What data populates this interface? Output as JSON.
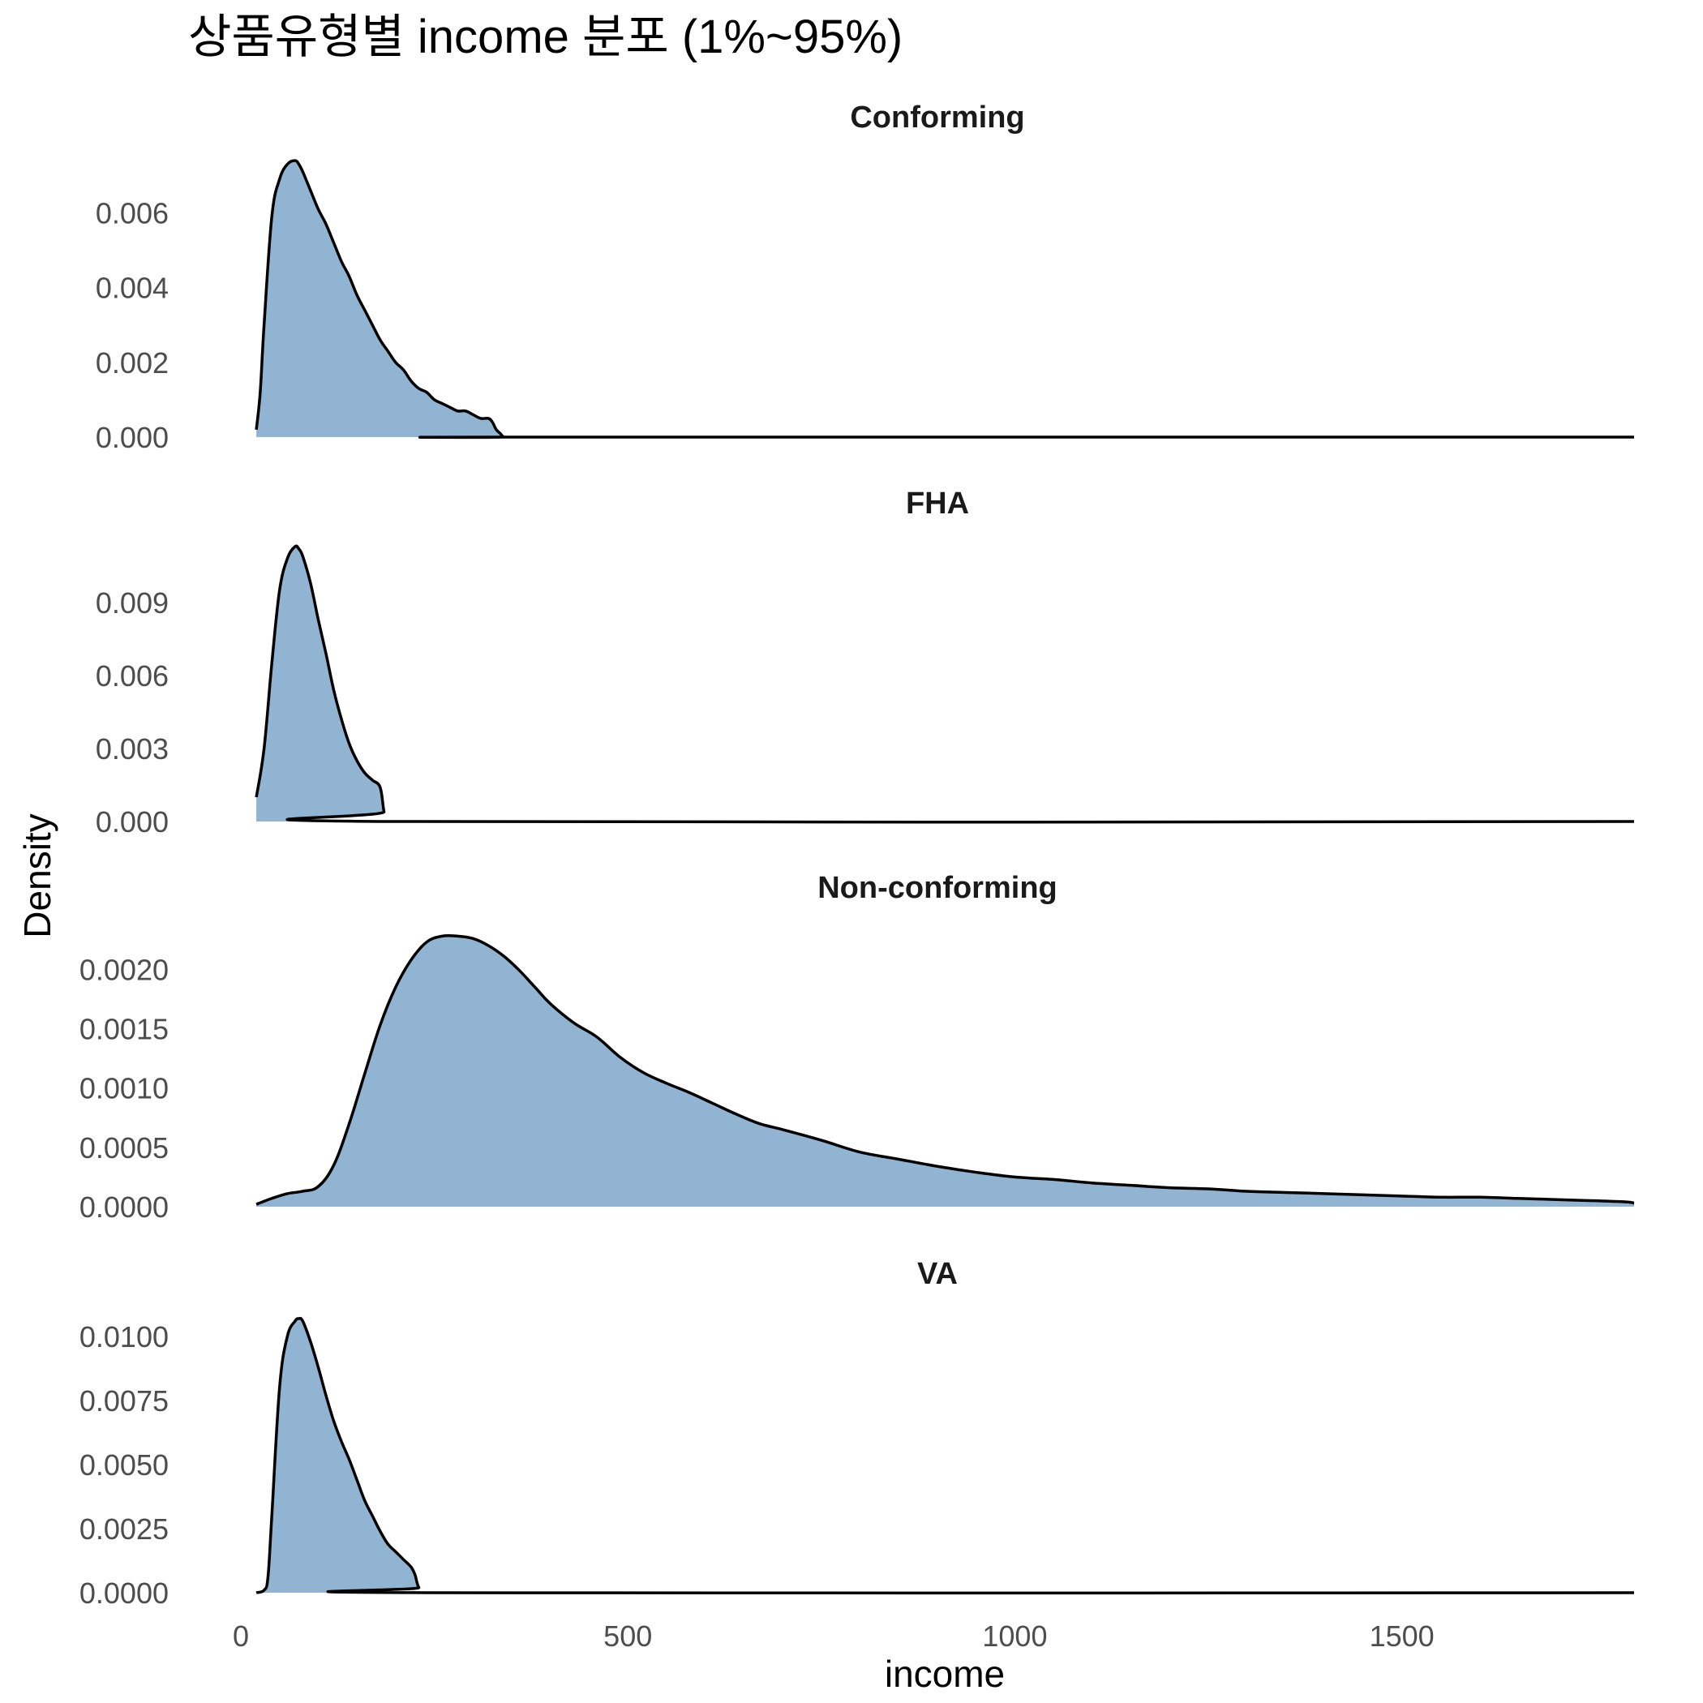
{
  "colors": {
    "fill": "#92b4d3",
    "line": "#000000",
    "text": "#1a1a1a",
    "tick": "#4d4d4d"
  },
  "chart_data": {
    "type": "area",
    "title": "상품유형별 income 분포 (1%~95%)",
    "xlabel": "income",
    "ylabel": "Density",
    "xlim": [
      0,
      1800
    ],
    "x_ticks": [
      0,
      500,
      1000,
      1500
    ],
    "grid": false,
    "legend": "none",
    "facets": [
      {
        "name": "Conforming",
        "ylim": [
          0,
          0.0074
        ],
        "y_ticks": [
          "0.000",
          "0.002",
          "0.004",
          "0.006"
        ],
        "y_tick_values": [
          0,
          0.002,
          0.004,
          0.006
        ],
        "x": [
          20,
          25,
          30,
          40,
          50,
          60,
          70,
          75,
          80,
          90,
          100,
          110,
          120,
          130,
          140,
          150,
          160,
          170,
          180,
          190,
          200,
          210,
          220,
          230,
          240,
          250,
          260,
          270,
          280,
          290,
          300,
          310,
          320,
          325,
          330,
          335,
          340,
          350,
          1800
        ],
        "y": [
          0.0002,
          0.0012,
          0.003,
          0.0059,
          0.0069,
          0.0073,
          0.0074,
          0.0073,
          0.0071,
          0.0066,
          0.0061,
          0.0057,
          0.0052,
          0.0047,
          0.0043,
          0.0038,
          0.0034,
          0.003,
          0.0026,
          0.0023,
          0.002,
          0.0018,
          0.0015,
          0.0013,
          0.0012,
          0.001,
          0.0009,
          0.0008,
          0.0007,
          0.0007,
          0.0006,
          0.0005,
          0.0005,
          0.0004,
          0.0002,
          0.0001,
          0.0,
          0.0,
          0.0
        ]
      },
      {
        "name": "FHA",
        "ylim": [
          0,
          0.0113
        ],
        "y_ticks": [
          "0.000",
          "0.003",
          "0.006",
          "0.009"
        ],
        "y_tick_values": [
          0,
          0.003,
          0.006,
          0.009
        ],
        "x": [
          20,
          30,
          40,
          50,
          60,
          70,
          75,
          80,
          90,
          100,
          110,
          120,
          130,
          140,
          150,
          160,
          170,
          180,
          185,
          190,
          1800
        ],
        "y": [
          0.001,
          0.003,
          0.0065,
          0.0095,
          0.0108,
          0.0113,
          0.0112,
          0.0109,
          0.0098,
          0.0083,
          0.0069,
          0.0054,
          0.0042,
          0.0032,
          0.0025,
          0.002,
          0.0017,
          0.0014,
          0.0004,
          0.0,
          0.0
        ]
      },
      {
        "name": "Non-conforming",
        "ylim": [
          0,
          0.00231
        ],
        "y_ticks": [
          "0.0000",
          "0.0005",
          "0.0010",
          "0.0015",
          "0.0020"
        ],
        "y_tick_values": [
          0,
          0.0005,
          0.001,
          0.0015,
          0.002
        ],
        "x": [
          20,
          40,
          60,
          80,
          100,
          120,
          140,
          160,
          180,
          200,
          220,
          240,
          260,
          280,
          300,
          320,
          340,
          360,
          380,
          400,
          430,
          460,
          490,
          520,
          550,
          580,
          610,
          640,
          670,
          700,
          750,
          800,
          850,
          900,
          950,
          1000,
          1050,
          1100,
          1150,
          1200,
          1250,
          1300,
          1350,
          1400,
          1450,
          1500,
          1550,
          1600,
          1650,
          1700,
          1750,
          1790,
          1800
        ],
        "y": [
          2e-05,
          7e-05,
          0.00011,
          0.00013,
          0.00017,
          0.00035,
          0.0007,
          0.00112,
          0.00153,
          0.00185,
          0.00208,
          0.00223,
          0.00228,
          0.00228,
          0.00226,
          0.0022,
          0.00211,
          0.00199,
          0.00185,
          0.00171,
          0.00155,
          0.00143,
          0.00126,
          0.00113,
          0.00104,
          0.00096,
          0.00087,
          0.00078,
          0.0007,
          0.00065,
          0.00056,
          0.00046,
          0.0004,
          0.00034,
          0.00029,
          0.00025,
          0.00023,
          0.0002,
          0.00018,
          0.00016,
          0.00015,
          0.00013,
          0.00012,
          0.00011,
          0.0001,
          9e-05,
          8e-05,
          8e-05,
          7e-05,
          6e-05,
          5e-05,
          4e-05,
          3e-05
        ]
      },
      {
        "name": "VA",
        "ylim": [
          0,
          0.0107
        ],
        "y_ticks": [
          "0.0000",
          "0.0025",
          "0.0050",
          "0.0075",
          "0.0100"
        ],
        "y_tick_values": [
          0,
          0.0025,
          0.005,
          0.0075,
          0.01
        ],
        "x": [
          20,
          30,
          35,
          40,
          50,
          60,
          70,
          75,
          80,
          90,
          100,
          110,
          120,
          130,
          140,
          150,
          160,
          170,
          180,
          190,
          200,
          210,
          220,
          225,
          230,
          240,
          1800
        ],
        "y": [
          0.0,
          0.0001,
          0.0006,
          0.003,
          0.008,
          0.01,
          0.0106,
          0.0107,
          0.0106,
          0.0098,
          0.0088,
          0.0077,
          0.0067,
          0.0059,
          0.0052,
          0.0044,
          0.0036,
          0.003,
          0.0024,
          0.0019,
          0.0016,
          0.0013,
          0.001,
          0.0007,
          0.0002,
          0.0,
          0.0
        ]
      }
    ]
  }
}
